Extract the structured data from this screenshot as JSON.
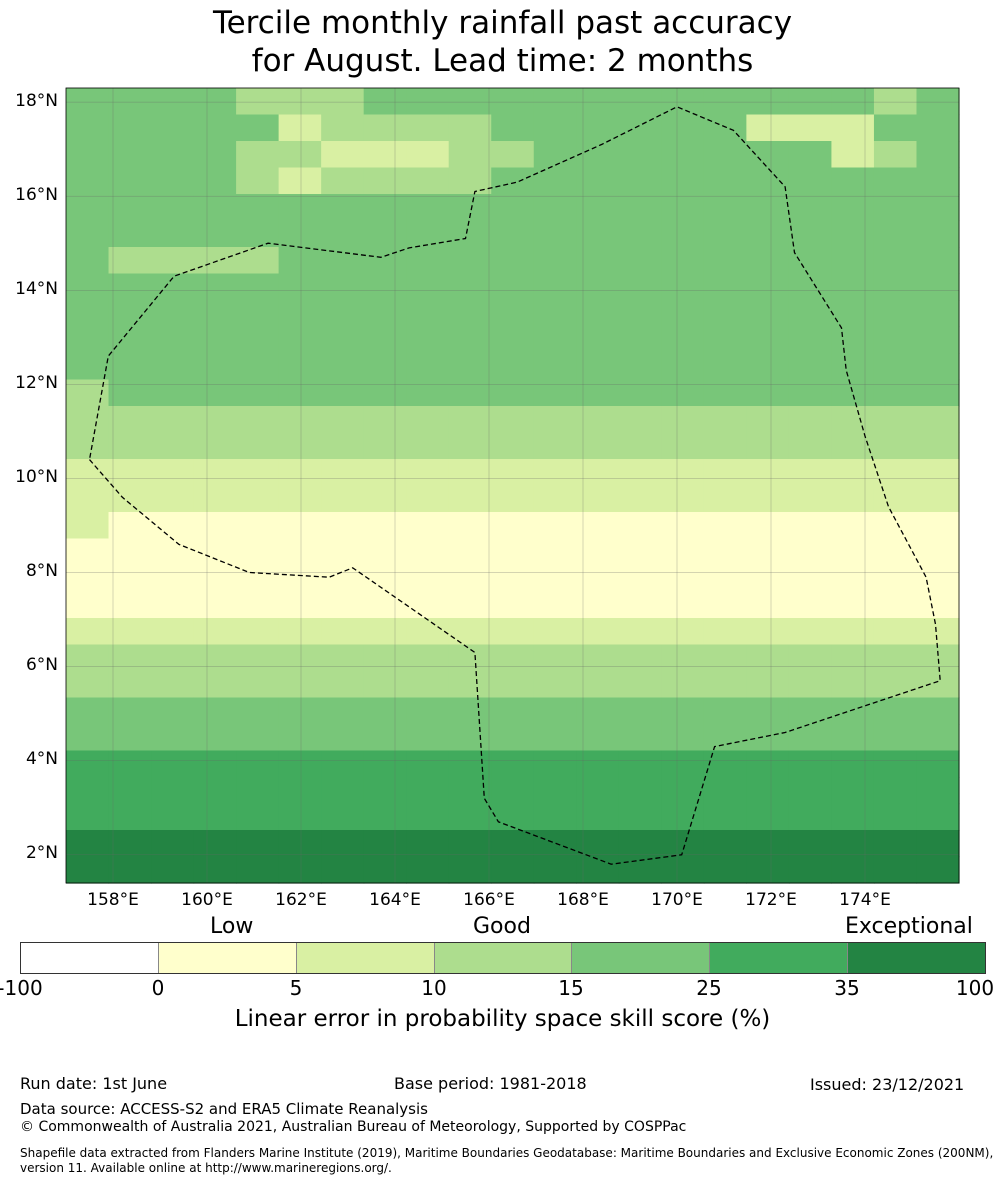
{
  "title": {
    "line1": "Tercile monthly rainfall past accuracy",
    "line2": "for August. Lead time: 2 months"
  },
  "map": {
    "lon_range": [
      157.0,
      176.0
    ],
    "lat_range": [
      1.4,
      18.3
    ],
    "lat_ticks": [
      "18°N",
      "16°N",
      "14°N",
      "12°N",
      "10°N",
      "8°N",
      "6°N",
      "4°N",
      "2°N"
    ],
    "lon_ticks": [
      "158°E",
      "160°E",
      "162°E",
      "164°E",
      "166°E",
      "168°E",
      "170°E",
      "172°E",
      "174°E"
    ],
    "colors": [
      "#ffffff",
      "#ffffcc",
      "#d9f0a3",
      "#addd8e",
      "#78c679",
      "#41ab5d",
      "#238443"
    ],
    "grid_rows_north_to_south": [
      "444433344444444444434",
      "444442333344444422244",
      "444433222334444444234",
      "444432333344444444444",
      "444444444444444444444",
      "444444444444444444444",
      "433334444444444444444",
      "444444444444444444444",
      "444444444444444444444",
      "444444444444444444444",
      "444444444444444444444",
      "344444444444444444444",
      "333333333333333333333",
      "333333333333333333333",
      "222222222222222222222",
      "222222222222222222222",
      "211111111111111111111",
      "111111111111111111111",
      "111111111111111111111",
      "111111111111111111111",
      "222222222222222222222",
      "333333333333333333333",
      "333333333333333333333",
      "444444444444444444444",
      "444444444444444444444",
      "555555555555555555555",
      "555555555555555555555",
      "555555555555555555555",
      "666666666666666666666",
      "666666666666666666666"
    ],
    "boundary_lonlat": [
      [
        157.5,
        10.4
      ],
      [
        158.2,
        9.6
      ],
      [
        159.4,
        8.6
      ],
      [
        160.9,
        8.0
      ],
      [
        162.6,
        7.9
      ],
      [
        163.1,
        8.1
      ],
      [
        165.7,
        6.3
      ],
      [
        165.9,
        3.2
      ],
      [
        166.2,
        2.7
      ],
      [
        168.6,
        1.8
      ],
      [
        170.1,
        2.0
      ],
      [
        170.8,
        4.3
      ],
      [
        172.3,
        4.6
      ],
      [
        175.6,
        5.7
      ],
      [
        175.5,
        6.9
      ],
      [
        175.3,
        7.9
      ],
      [
        174.5,
        9.4
      ],
      [
        174.0,
        10.9
      ],
      [
        173.6,
        12.3
      ],
      [
        173.5,
        13.2
      ],
      [
        172.5,
        14.8
      ],
      [
        172.3,
        16.2
      ],
      [
        171.2,
        17.4
      ],
      [
        170.0,
        17.9
      ],
      [
        168.4,
        17.1
      ],
      [
        166.6,
        16.3
      ],
      [
        165.7,
        16.1
      ],
      [
        165.5,
        15.1
      ],
      [
        164.3,
        14.9
      ],
      [
        163.7,
        14.7
      ],
      [
        161.3,
        15.0
      ],
      [
        159.3,
        14.3
      ],
      [
        157.9,
        12.6
      ],
      [
        157.5,
        10.4
      ]
    ]
  },
  "colorbar": {
    "categories": {
      "low": "Low",
      "good": "Good",
      "exceptional": "Exceptional"
    },
    "ticks": [
      "-100",
      "0",
      "5",
      "10",
      "15",
      "25",
      "35",
      "100"
    ],
    "label": "Linear error in probability space skill score (%)"
  },
  "footer": {
    "run_date": "Run date: 1st June",
    "base_period": "Base period: 1981-2018",
    "issued": "Issued: 23/12/2021",
    "data_source": "Data source: ACCESS-S2 and ERA5 Climate Reanalysis",
    "copyright": "© Commonwealth of Australia 2021, Australian Bureau of Meteorology, Supported by COSPPac",
    "shapefile_line1": "Shapefile data extracted from Flanders Marine Institute (2019), Maritime Boundaries Geodatabase: Maritime Boundaries and Exclusive Economic Zones (200NM),",
    "shapefile_line2": "version 11. Available online at http://www.marineregions.org/."
  }
}
